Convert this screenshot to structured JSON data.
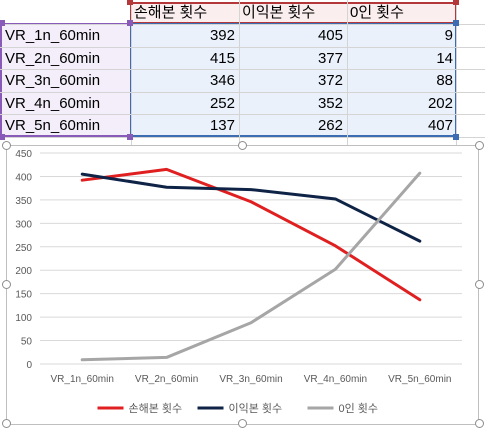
{
  "table": {
    "headers": [
      "손해본 횟수",
      "이익본 횟수",
      "0인 횟수"
    ],
    "rows": [
      {
        "label": "VR_1n_60min",
        "values": [
          "392",
          "405",
          "9"
        ]
      },
      {
        "label": "VR_2n_60min",
        "values": [
          "415",
          "377",
          "14"
        ]
      },
      {
        "label": "VR_3n_60min",
        "values": [
          "346",
          "372",
          "88"
        ]
      },
      {
        "label": "VR_4n_60min",
        "values": [
          "252",
          "352",
          "202"
        ]
      },
      {
        "label": "VR_5n_60min",
        "values": [
          "137",
          "262",
          "407"
        ]
      }
    ]
  },
  "chart_data": {
    "type": "line",
    "categories": [
      "VR_1n_60min",
      "VR_2n_60min",
      "VR_3n_60min",
      "VR_4n_60min",
      "VR_5n_60min"
    ],
    "series": [
      {
        "name": "손해본 횟수",
        "values": [
          392,
          415,
          346,
          252,
          137
        ],
        "color": "#e02020"
      },
      {
        "name": "이익본 횟수",
        "values": [
          405,
          377,
          372,
          352,
          262
        ],
        "color": "#0f2347"
      },
      {
        "name": "0인 횟수",
        "values": [
          9,
          14,
          88,
          202,
          407
        ],
        "color": "#a6a6a6"
      }
    ],
    "yticks": [
      "0",
      "50",
      "100",
      "150",
      "200",
      "250",
      "300",
      "350",
      "400",
      "450"
    ],
    "ylim": [
      0,
      450
    ],
    "grid": true,
    "legend_position": "bottom"
  },
  "colors": {
    "range_purple": "#8a5ab8",
    "range_red": "#b4383a",
    "range_blue": "#3c6db2"
  }
}
